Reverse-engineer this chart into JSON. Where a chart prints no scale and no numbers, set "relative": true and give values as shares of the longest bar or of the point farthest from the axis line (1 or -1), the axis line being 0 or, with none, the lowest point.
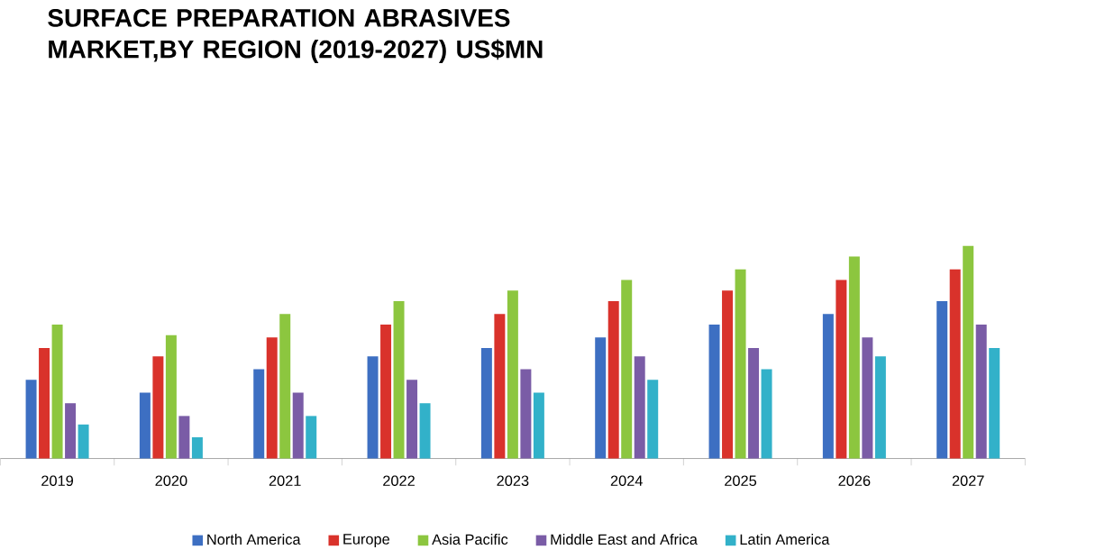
{
  "chart_data": {
    "type": "bar",
    "title": "SURFACE PREPARATION ABRASIVES MARKET,BY REGION (2019-2027) US$MN",
    "relative": true,
    "legend": "bottom",
    "categories": [
      "2019",
      "2020",
      "2021",
      "2022",
      "2023",
      "2024",
      "2025",
      "2026",
      "2027"
    ],
    "series": [
      {
        "name": "North America",
        "color": "#3d6fc2",
        "values": [
          0.37,
          0.31,
          0.42,
          0.48,
          0.52,
          0.57,
          0.63,
          0.68,
          0.74
        ]
      },
      {
        "name": "Europe",
        "color": "#d9322b",
        "values": [
          0.52,
          0.48,
          0.57,
          0.63,
          0.68,
          0.74,
          0.79,
          0.84,
          0.89
        ]
      },
      {
        "name": "Asia Pacific",
        "color": "#8cc63f",
        "values": [
          0.63,
          0.58,
          0.68,
          0.74,
          0.79,
          0.84,
          0.89,
          0.95,
          1
        ]
      },
      {
        "name": "Middle East and Africa",
        "color": "#7a5ca6",
        "values": [
          0.26,
          0.2,
          0.31,
          0.37,
          0.42,
          0.48,
          0.52,
          0.57,
          0.63
        ]
      },
      {
        "name": "Latin America",
        "color": "#32b1c9",
        "values": [
          0.16,
          0.1,
          0.2,
          0.26,
          0.31,
          0.37,
          0.42,
          0.48,
          0.52
        ]
      }
    ]
  }
}
